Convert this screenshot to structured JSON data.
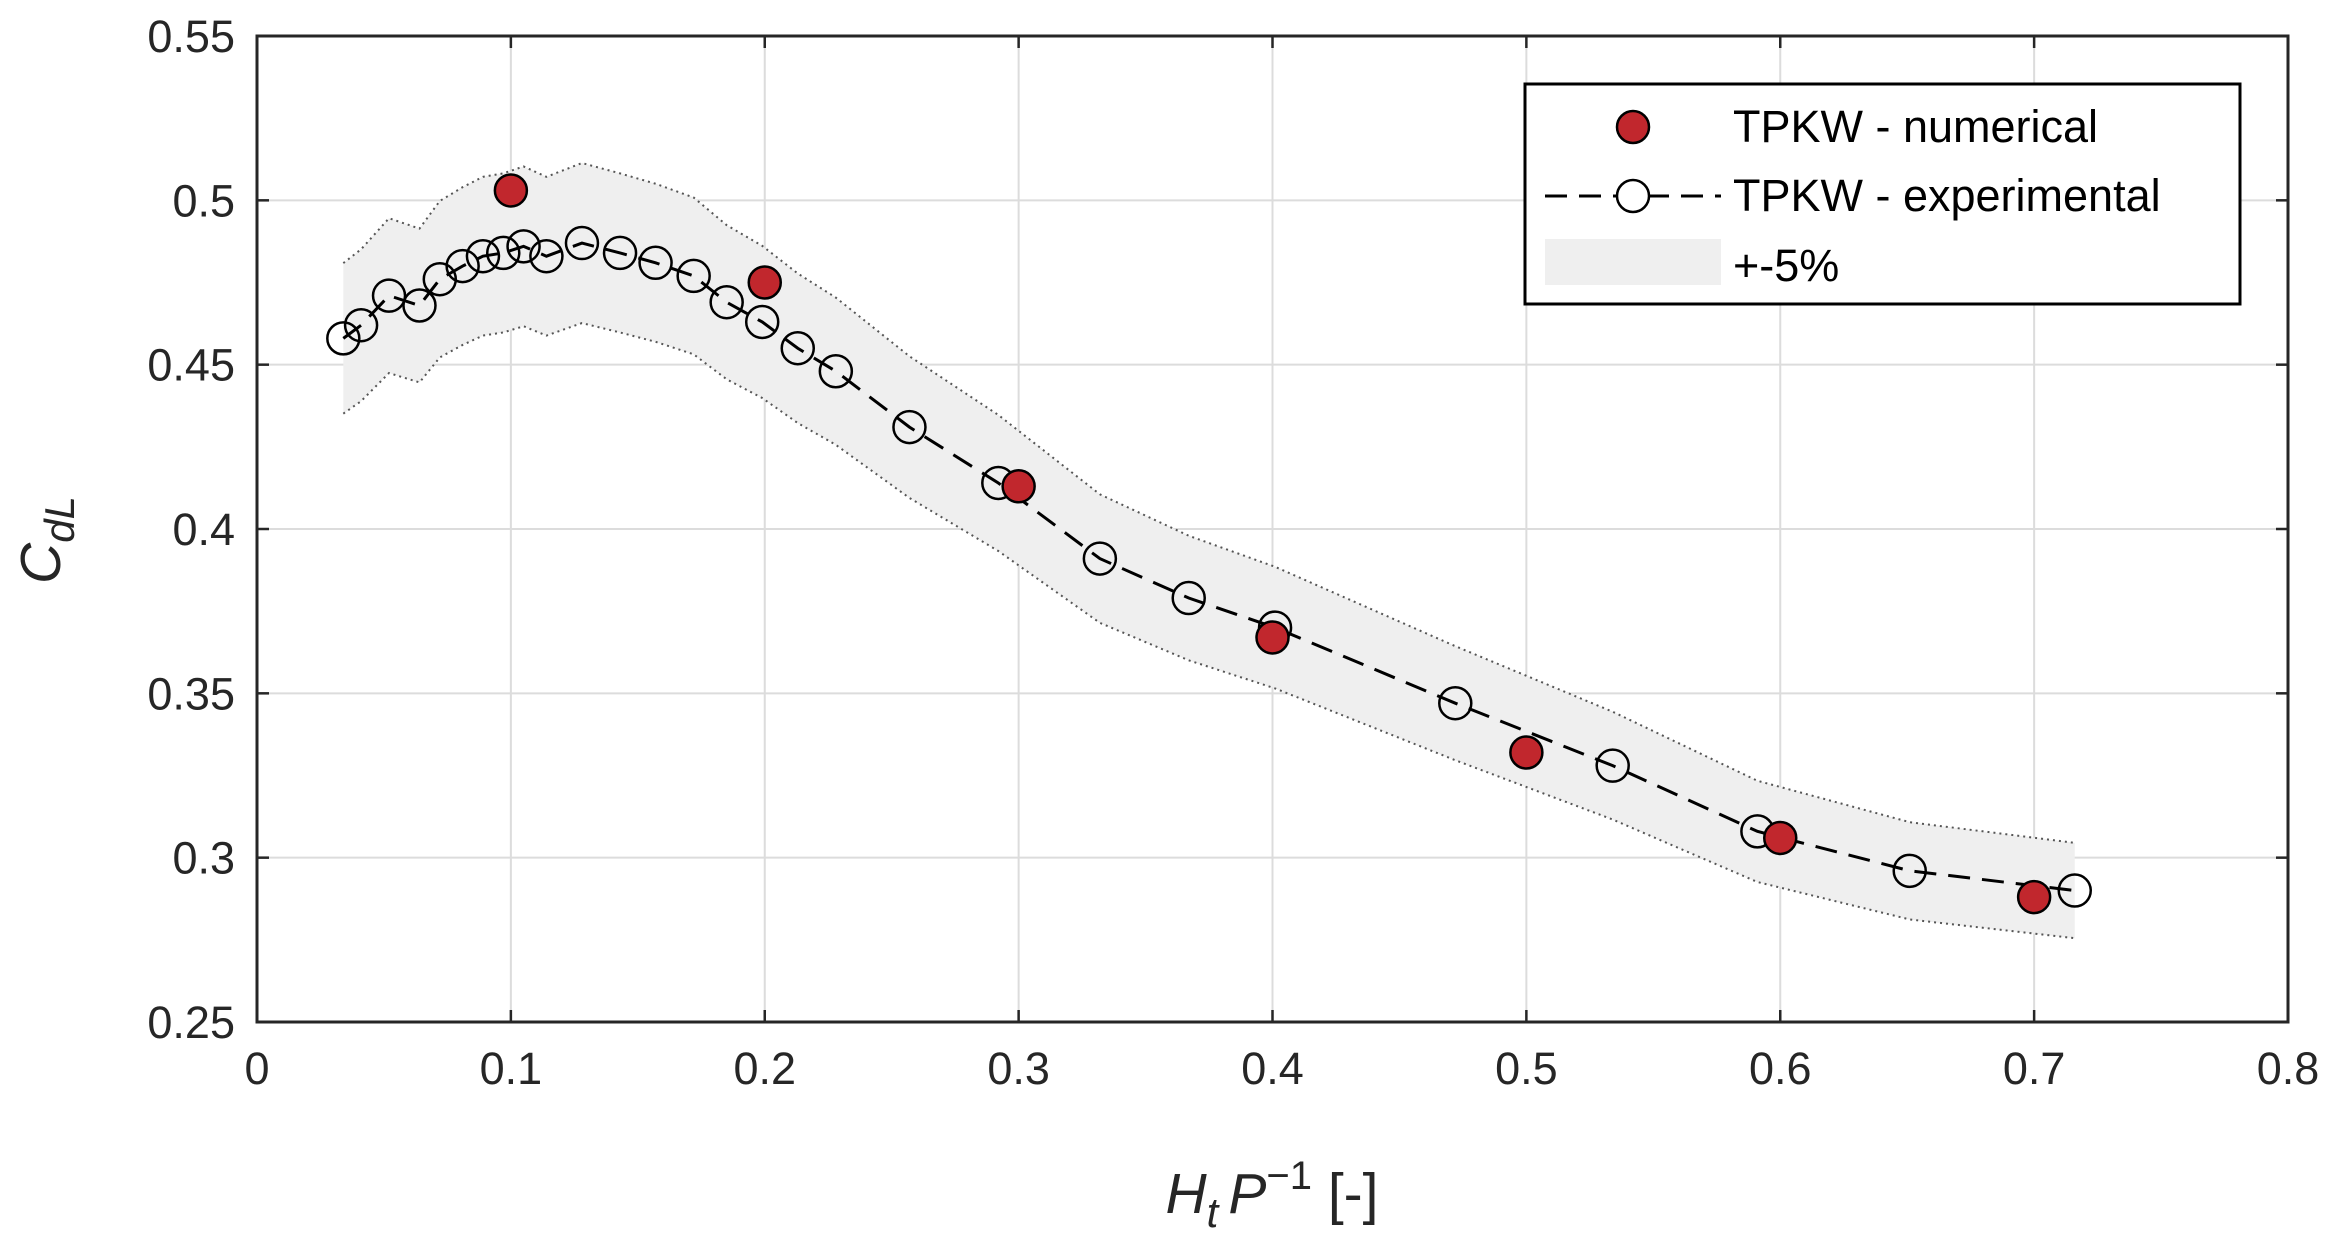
{
  "chart_data": {
    "type": "scatter",
    "xlabel": {
      "main": "H",
      "sub": "t",
      "second": "P",
      "sup": "−1",
      "unit": " [-]"
    },
    "ylabel": {
      "main": "C",
      "sub": "dL"
    },
    "xlim": [
      0,
      0.8
    ],
    "ylim": [
      0.25,
      0.55
    ],
    "xticks": [
      "0",
      "0.1",
      "0.2",
      "0.3",
      "0.4",
      "0.5",
      "0.6",
      "0.7",
      "0.8"
    ],
    "yticks": [
      "0.25",
      "0.3",
      "0.35",
      "0.4",
      "0.45",
      "0.5",
      "0.55"
    ],
    "grid": true,
    "legend_position": "top-right",
    "series": [
      {
        "name": "TPKW - numerical",
        "style": "filled-circle",
        "color": "#c1272d",
        "x": [
          0.1,
          0.2,
          0.3,
          0.4,
          0.5,
          0.6,
          0.7
        ],
        "y": [
          0.503,
          0.475,
          0.413,
          0.367,
          0.332,
          0.306,
          0.288
        ]
      },
      {
        "name": "TPKW - experimental",
        "style": "open-circle-dashed-line",
        "color": "#000000",
        "x": [
          0.034,
          0.041,
          0.052,
          0.064,
          0.072,
          0.081,
          0.089,
          0.097,
          0.105,
          0.114,
          0.128,
          0.143,
          0.157,
          0.172,
          0.185,
          0.199,
          0.213,
          0.228,
          0.257,
          0.292,
          0.332,
          0.367,
          0.401,
          0.472,
          0.534,
          0.591,
          0.651,
          0.716
        ],
        "y": [
          0.458,
          0.462,
          0.471,
          0.468,
          0.476,
          0.48,
          0.483,
          0.484,
          0.486,
          0.483,
          0.487,
          0.484,
          0.481,
          0.477,
          0.469,
          0.463,
          0.455,
          0.448,
          0.431,
          0.414,
          0.391,
          0.379,
          0.37,
          0.347,
          0.328,
          0.308,
          0.296,
          0.29
        ]
      },
      {
        "name": "+-5%",
        "style": "band",
        "color": "#efefef",
        "band_fraction": 0.05
      }
    ]
  }
}
